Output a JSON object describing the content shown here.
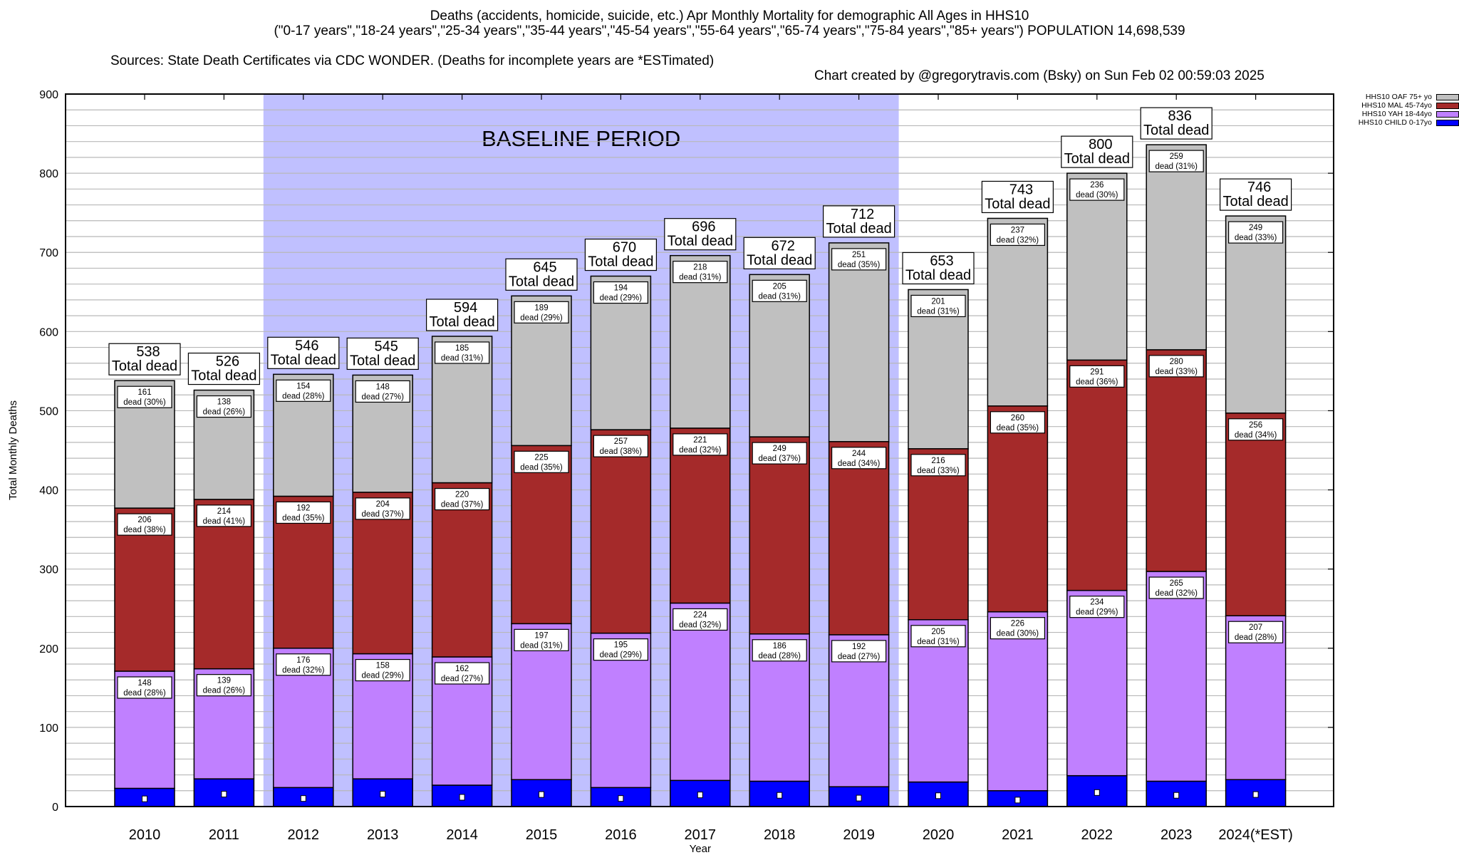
{
  "header": {
    "title_line1": "Deaths (accidents, homicide, suicide, etc.) Apr Monthly Mortality for demographic All Ages in HHS10",
    "title_line2": "(\"0-17 years\",\"18-24 years\",\"25-34 years\",\"35-44 years\",\"45-54 years\",\"55-64 years\",\"65-74 years\",\"75-84 years\",\"85+ years\") POPULATION 14,698,539",
    "sources": "Sources: State Death Certificates via CDC WONDER. (Deaths for incomplete years are *ESTimated)",
    "credit": "Chart created by @gregorytravis.com (Bsky) on Sun Feb 02 00:59:03 2025"
  },
  "chart_data": {
    "type": "bar",
    "stacked": true,
    "title": "Deaths (accidents, homicide, suicide, etc.) Apr Monthly Mortality for demographic All Ages in HHS10",
    "xlabel": "Year",
    "ylabel": "Total Monthly Deaths",
    "ylim": [
      0,
      900
    ],
    "yticks": [
      0,
      100,
      200,
      300,
      400,
      500,
      600,
      700,
      800,
      900
    ],
    "grid": true,
    "legend_position": "top-right",
    "annotation": {
      "text": "BASELINE PERIOD",
      "from": "2012",
      "to": "2019",
      "color": "#c0c0ff"
    },
    "categories": [
      "2010",
      "2011",
      "2012",
      "2013",
      "2014",
      "2015",
      "2016",
      "2017",
      "2018",
      "2019",
      "2020",
      "2021",
      "2022",
      "2023",
      "2024(*EST)"
    ],
    "totals": [
      538,
      526,
      546,
      545,
      594,
      645,
      670,
      696,
      672,
      712,
      653,
      743,
      800,
      836,
      746
    ],
    "total_label_suffix": "Total dead",
    "segment_label_suffix": "dead",
    "series": [
      {
        "name": "HHS10 CHILD 0-17yo",
        "color": "#0000ff",
        "labeled": false,
        "values": [
          23,
          35,
          24,
          35,
          27,
          34,
          24,
          33,
          32,
          25,
          31,
          20,
          39,
          32,
          34
        ]
      },
      {
        "name": "HHS10 YAH 18-44yo",
        "color": "#c080ff",
        "labeled": true,
        "values": [
          148,
          139,
          176,
          158,
          162,
          197,
          195,
          224,
          186,
          192,
          205,
          226,
          234,
          265,
          207
        ],
        "percents": [
          28,
          26,
          32,
          29,
          27,
          31,
          29,
          32,
          28,
          27,
          31,
          30,
          29,
          32,
          28
        ]
      },
      {
        "name": "HHS10 MAL 45-74yo",
        "color": "#a52a2a",
        "labeled": true,
        "values": [
          206,
          214,
          192,
          204,
          220,
          225,
          257,
          221,
          249,
          244,
          216,
          260,
          291,
          280,
          256
        ],
        "percents": [
          38,
          41,
          35,
          37,
          37,
          35,
          38,
          32,
          37,
          34,
          33,
          35,
          36,
          33,
          34
        ]
      },
      {
        "name": "HHS10 OAF 75+ yo",
        "color": "#c0c0c0",
        "labeled": true,
        "values": [
          161,
          138,
          154,
          148,
          185,
          189,
          194,
          218,
          205,
          251,
          201,
          237,
          236,
          259,
          249
        ],
        "percents": [
          30,
          26,
          28,
          27,
          31,
          29,
          29,
          31,
          31,
          35,
          31,
          32,
          30,
          31,
          33
        ]
      }
    ]
  }
}
